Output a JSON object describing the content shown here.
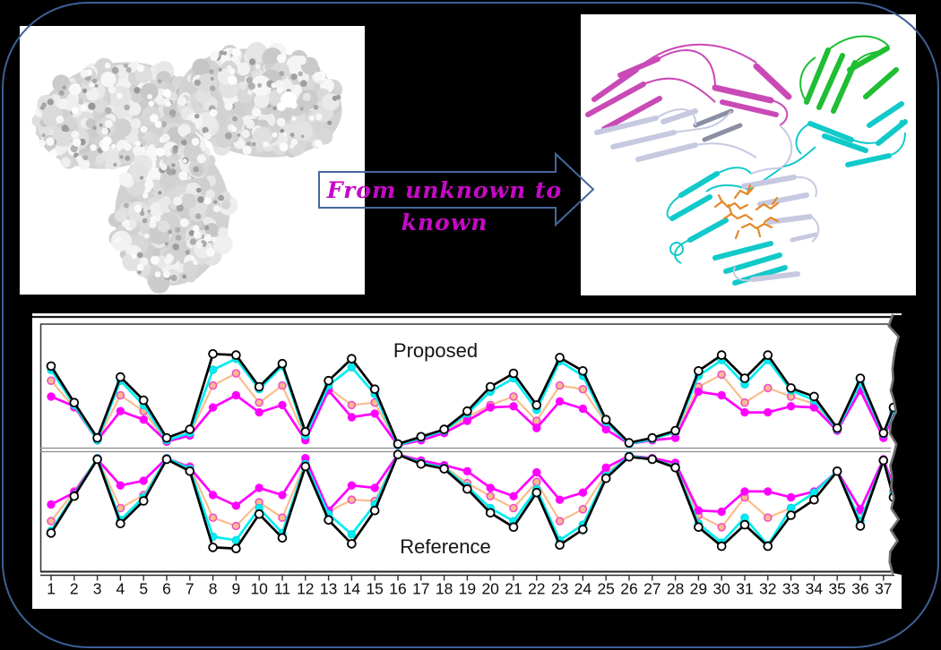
{
  "figure": {
    "background_color": "#000000",
    "border_color": "#3D6095"
  },
  "arrow": {
    "text": "From unknown to known",
    "text_color": "#C50AC5",
    "outline_color": "#46689B"
  },
  "molecule_palette": {
    "surface_gray": "#D2D2D2",
    "ribbon_magenta": "#C94AB6",
    "ribbon_lavender": "#C6C9E0",
    "ribbon_slate": "#8A8FA4",
    "ribbon_green": "#1FBE33",
    "ribbon_cyan": "#12C9C9",
    "glycan_orange": "#E2892B"
  },
  "chart_data": {
    "type": "line",
    "layout": "mirrored-profile",
    "top_label": "Proposed",
    "bottom_label": "Reference",
    "xlabel": "",
    "ylabel": "",
    "ylim": [
      0,
      1
    ],
    "grid": false,
    "x_tick_labels": [
      "1",
      "2",
      "3",
      "4",
      "5",
      "6",
      "7",
      "8",
      "9",
      "10",
      "11",
      "12",
      "13",
      "14",
      "15",
      "16",
      "17",
      "18",
      "19",
      "20",
      "21",
      "22",
      "23",
      "24",
      "25",
      "26",
      "27",
      "28",
      "29",
      "30",
      "31",
      "32",
      "33",
      "34",
      "35",
      "36",
      "37"
    ],
    "series": [
      {
        "name": "orange",
        "color": "#FABD8D",
        "marker_fill": "#FABD8D",
        "marker_stroke": "#F24FC8",
        "proposed": [
          0.55,
          0.33,
          0.06,
          0.43,
          0.3,
          0.05,
          0.11,
          0.51,
          0.61,
          0.37,
          0.51,
          0.08,
          0.49,
          0.35,
          0.37,
          0.02,
          0.07,
          0.13,
          0.25,
          0.35,
          0.42,
          0.22,
          0.51,
          0.48,
          0.2,
          0.03,
          0.07,
          0.12,
          0.5,
          0.6,
          0.37,
          0.49,
          0.42,
          0.36,
          0.15,
          0.49,
          0.1
        ],
        "reference": [
          0.58,
          0.33,
          0.05,
          0.47,
          0.36,
          0.05,
          0.12,
          0.55,
          0.62,
          0.42,
          0.55,
          0.09,
          0.5,
          0.4,
          0.41,
          0.02,
          0.08,
          0.12,
          0.26,
          0.37,
          0.47,
          0.25,
          0.58,
          0.48,
          0.18,
          0.03,
          0.06,
          0.11,
          0.53,
          0.63,
          0.38,
          0.55,
          0.47,
          0.35,
          0.16,
          0.49,
          0.07
        ],
        "edge_proposed": 0.3,
        "edge_reference": 0.33
      },
      {
        "name": "magenta",
        "color": "#FF00FF",
        "marker_fill": "#FF00FF",
        "marker_stroke": "#FF00FF",
        "proposed": [
          0.42,
          0.34,
          0.06,
          0.3,
          0.23,
          0.05,
          0.1,
          0.33,
          0.43,
          0.29,
          0.35,
          0.06,
          0.47,
          0.25,
          0.28,
          0.02,
          0.06,
          0.12,
          0.22,
          0.33,
          0.34,
          0.16,
          0.38,
          0.32,
          0.15,
          0.03,
          0.06,
          0.08,
          0.46,
          0.43,
          0.29,
          0.29,
          0.34,
          0.33,
          0.14,
          0.47,
          0.08
        ],
        "reference": [
          0.44,
          0.34,
          0.06,
          0.28,
          0.24,
          0.05,
          0.13,
          0.36,
          0.45,
          0.3,
          0.36,
          0.05,
          0.49,
          0.28,
          0.3,
          0.02,
          0.07,
          0.11,
          0.16,
          0.3,
          0.37,
          0.17,
          0.4,
          0.34,
          0.13,
          0.03,
          0.05,
          0.09,
          0.49,
          0.5,
          0.33,
          0.33,
          0.38,
          0.33,
          0.16,
          0.48,
          0.06
        ],
        "edge_proposed": 0.27,
        "edge_reference": 0.29
      },
      {
        "name": "cyan",
        "color": "#00EDF2",
        "marker_fill": "#00EDF2",
        "marker_stroke": "#00D5DC",
        "proposed": [
          0.64,
          0.35,
          0.06,
          0.55,
          0.35,
          0.06,
          0.12,
          0.64,
          0.73,
          0.48,
          0.67,
          0.1,
          0.51,
          0.66,
          0.44,
          0.02,
          0.08,
          0.14,
          0.28,
          0.46,
          0.57,
          0.31,
          0.71,
          0.59,
          0.21,
          0.03,
          0.07,
          0.13,
          0.59,
          0.72,
          0.52,
          0.72,
          0.47,
          0.39,
          0.15,
          0.53,
          0.11
        ],
        "reference": [
          0.66,
          0.36,
          0.05,
          0.57,
          0.38,
          0.05,
          0.14,
          0.71,
          0.74,
          0.47,
          0.68,
          0.1,
          0.52,
          0.69,
          0.44,
          0.02,
          0.09,
          0.13,
          0.29,
          0.47,
          0.58,
          0.31,
          0.74,
          0.61,
          0.2,
          0.03,
          0.06,
          0.12,
          0.6,
          0.76,
          0.55,
          0.78,
          0.47,
          0.34,
          0.16,
          0.58,
          0.07
        ],
        "edge_proposed": 0.31,
        "edge_reference": 0.35
      },
      {
        "name": "black",
        "color": "#000000",
        "marker_fill": "#FFFFFF",
        "marker_stroke": "#000000",
        "proposed": [
          0.67,
          0.37,
          0.08,
          0.58,
          0.39,
          0.08,
          0.15,
          0.77,
          0.76,
          0.5,
          0.69,
          0.13,
          0.55,
          0.73,
          0.48,
          0.03,
          0.09,
          0.15,
          0.3,
          0.5,
          0.61,
          0.35,
          0.74,
          0.63,
          0.23,
          0.04,
          0.08,
          0.14,
          0.63,
          0.76,
          0.57,
          0.76,
          0.49,
          0.42,
          0.16,
          0.57,
          0.12
        ],
        "reference": [
          0.68,
          0.37,
          0.06,
          0.6,
          0.41,
          0.06,
          0.16,
          0.8,
          0.81,
          0.52,
          0.72,
          0.12,
          0.57,
          0.77,
          0.49,
          0.02,
          0.1,
          0.14,
          0.31,
          0.51,
          0.63,
          0.34,
          0.78,
          0.65,
          0.22,
          0.04,
          0.06,
          0.13,
          0.63,
          0.79,
          0.61,
          0.79,
          0.53,
          0.4,
          0.16,
          0.62,
          0.07
        ],
        "edge_proposed": 0.33,
        "edge_reference": 0.38
      }
    ]
  }
}
